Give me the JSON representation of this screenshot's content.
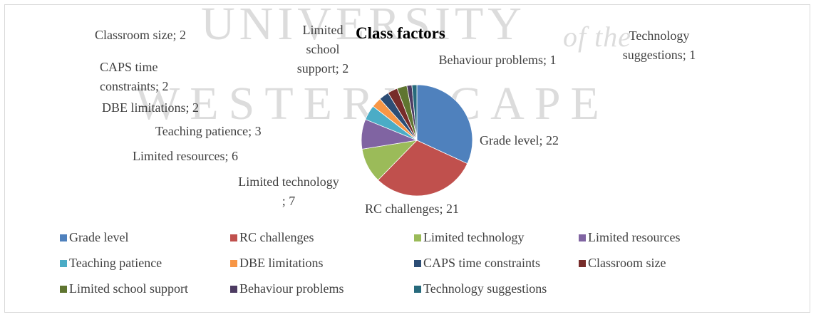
{
  "chart_data": {
    "type": "pie",
    "title": "Class factors",
    "watermark": [
      "UNIVERSITY",
      "of the",
      "WESTERN CAPE"
    ],
    "categories": [
      "Grade level",
      "RC challenges",
      "Limited technology",
      "Limited resources",
      "Teaching patience",
      "DBE limitations",
      "CAPS time constraints",
      "Classroom size",
      "Limited school support",
      "Behaviour problems",
      "Technology suggestions"
    ],
    "values": [
      22,
      21,
      7,
      6,
      3,
      2,
      2,
      2,
      2,
      1,
      1
    ],
    "value_labels": [
      "Grade level; 22",
      "RC challenges; 21",
      "Limited technology ; 7",
      "Limited resources; 6",
      "Teaching patience; 3",
      "DBE limitations; 2",
      "CAPS time constraints; 2",
      "Classroom size; 2",
      "Limited school support; 2",
      "Behaviour problems; 1",
      "Technology suggestions; 1"
    ],
    "colors": [
      "#4f81bd",
      "#c0504d",
      "#9bbb59",
      "#8064a2",
      "#4bacc6",
      "#f79646",
      "#2c4d75",
      "#772c2a",
      "#5f7530",
      "#4d3b62",
      "#276a7c"
    ],
    "legend": "bottom"
  }
}
